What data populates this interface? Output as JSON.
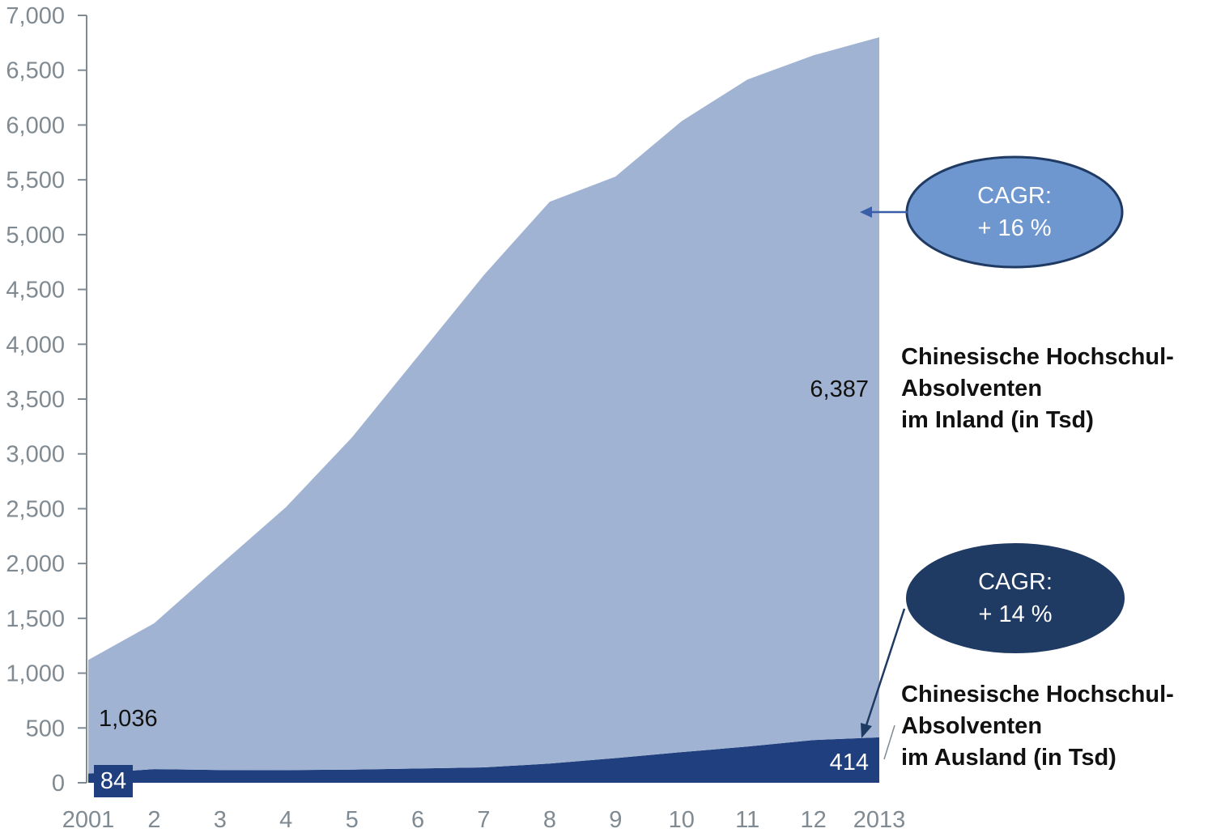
{
  "chart_data": {
    "type": "area",
    "x": [
      "2001",
      "2",
      "3",
      "4",
      "5",
      "6",
      "7",
      "8",
      "9",
      "10",
      "11",
      "12",
      "2013"
    ],
    "ylim": [
      0,
      7000
    ],
    "yticks": [
      0,
      500,
      1000,
      1500,
      2000,
      2500,
      3000,
      3500,
      4000,
      4500,
      5000,
      5500,
      6000,
      6500,
      7000
    ],
    "ytick_labels": [
      "0",
      "500",
      "1,000",
      "1,500",
      "2,000",
      "2,500",
      "3,000",
      "3,500",
      "4,000",
      "4,500",
      "5,000",
      "5,500",
      "6,000",
      "6,500",
      "7,000"
    ],
    "stacked": true,
    "series": [
      {
        "name": "Chinesische Hochschul-Absolventen im Ausland (in Tsd)",
        "color": "#1f3f7f",
        "values": [
          84,
          125,
          117,
          115,
          120,
          130,
          140,
          175,
          225,
          280,
          330,
          390,
          414
        ]
      },
      {
        "name": "Chinesische Hochschul-Absolventen im Inland (in Tsd)",
        "color": "#a0b3d2",
        "values": [
          1036,
          1330,
          1870,
          2400,
          3030,
          3760,
          4490,
          5125,
          5305,
          5755,
          6085,
          6245,
          6387
        ]
      }
    ],
    "data_labels": {
      "inland_start": "1,036",
      "inland_end": "6,387",
      "ausland_start": "84",
      "ausland_end": "414"
    },
    "series_labels": {
      "inland": "Chinesische Hochschul-\nAbsolventen\nim Inland (in Tsd)",
      "ausland": "Chinesische Hochschul-\nAbsolventen\nim Ausland (in Tsd)"
    },
    "annotations": {
      "inland_cagr": {
        "line1": "CAGR:",
        "line2": "+ 16 %",
        "color": "#6f97cf"
      },
      "ausland_cagr": {
        "line1": "CAGR:",
        "line2": "+ 14 %",
        "color": "#1f3a63"
      }
    },
    "axis_color": "#7f8a92",
    "grid": false
  }
}
